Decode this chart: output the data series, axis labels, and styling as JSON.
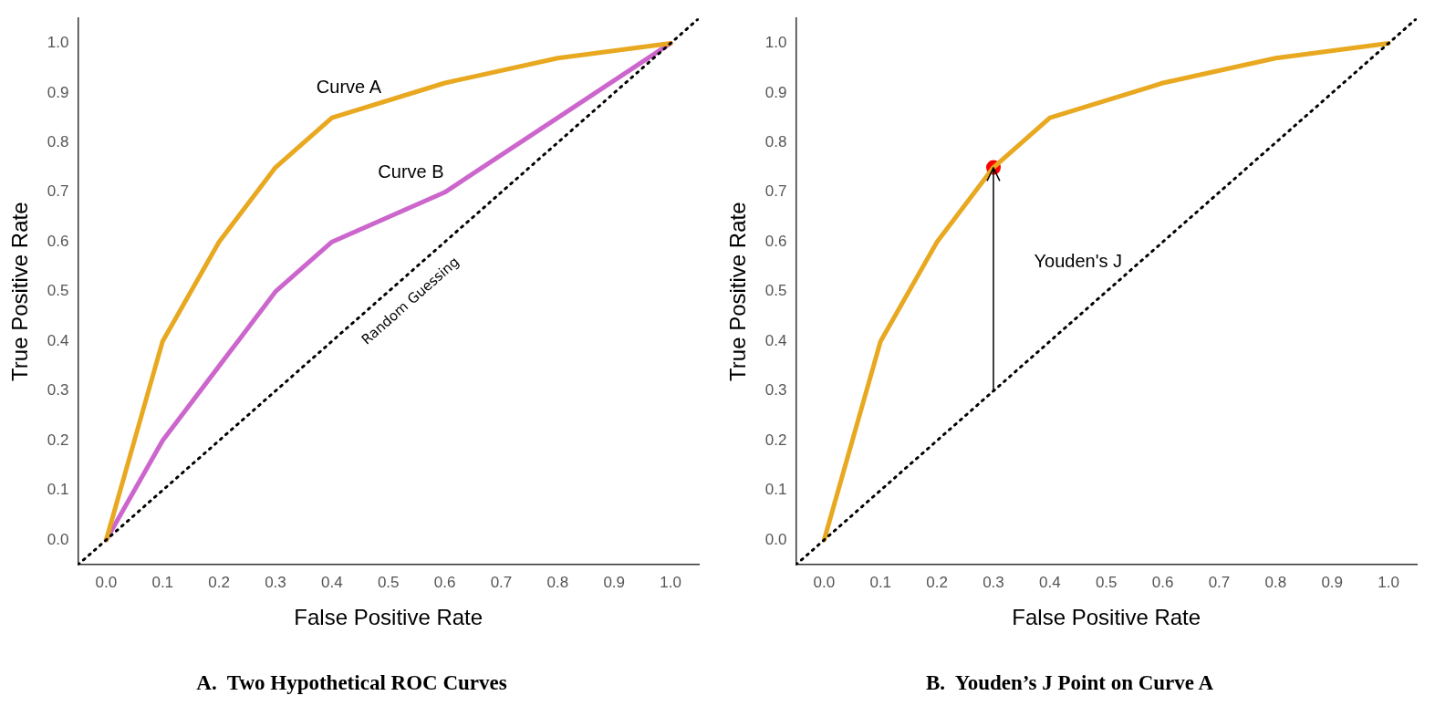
{
  "chart_data": [
    {
      "type": "line",
      "title": "A.  Two Hypothetical ROC Curves",
      "xlabel": "False Positive Rate",
      "ylabel": "True Positive Rate",
      "xlim": [
        -0.05,
        1.05
      ],
      "ylim": [
        -0.05,
        1.05
      ],
      "xticks": [
        {
          "value": 0,
          "label": "0.0"
        },
        {
          "value": 0.1,
          "label": "0.1"
        },
        {
          "value": 0.2,
          "label": "0.2"
        },
        {
          "value": 0.3,
          "label": "0.3"
        },
        {
          "value": 0.4,
          "label": "0.4"
        },
        {
          "value": 0.5,
          "label": "0.5"
        },
        {
          "value": 0.6,
          "label": "0.6"
        },
        {
          "value": 0.7,
          "label": "0.7"
        },
        {
          "value": 0.8,
          "label": "0.8"
        },
        {
          "value": 0.9,
          "label": "0.9"
        },
        {
          "value": 1,
          "label": "1.0"
        }
      ],
      "yticks": [
        {
          "value": 0,
          "label": "0.0"
        },
        {
          "value": 0.1,
          "label": "0.1"
        },
        {
          "value": 0.2,
          "label": "0.2"
        },
        {
          "value": 0.3,
          "label": "0.3"
        },
        {
          "value": 0.4,
          "label": "0.4"
        },
        {
          "value": 0.5,
          "label": "0.5"
        },
        {
          "value": 0.6,
          "label": "0.6"
        },
        {
          "value": 0.7,
          "label": "0.7"
        },
        {
          "value": 0.8,
          "label": "0.8"
        },
        {
          "value": 0.9,
          "label": "0.9"
        },
        {
          "value": 1,
          "label": "1.0"
        }
      ],
      "grid": false,
      "legend": false,
      "marker": "none",
      "series": [
        {
          "color": "#000000",
          "line_style": "dotted",
          "x": [
            -0.05,
            1.05
          ],
          "values": [
            -0.05,
            1.05
          ]
        },
        {
          "color": "#e8a820",
          "x": [
            0,
            0.1,
            0.2,
            0.3,
            0.4,
            0.6,
            0.8,
            1
          ],
          "values": [
            0,
            0.4,
            0.6,
            0.75,
            0.85,
            0.92,
            0.97,
            1
          ]
        },
        {
          "color": "#cc66cc",
          "x": [
            0,
            0.1,
            0.2,
            0.3,
            0.4,
            0.6,
            0.8,
            1
          ],
          "values": [
            0,
            0.2,
            0.35,
            0.5,
            0.6,
            0.7,
            0.85,
            1
          ]
        }
      ],
      "annotations": [
        "Curve A",
        "Curve B",
        "Random Guessing"
      ]
    },
    {
      "type": "line",
      "title": "B.  Youden’s J Point on Curve A",
      "xlabel": "False Positive Rate",
      "ylabel": "True Positive Rate",
      "xlim": [
        -0.05,
        1.05
      ],
      "ylim": [
        -0.05,
        1.05
      ],
      "xticks": [
        {
          "value": 0,
          "label": "0.0"
        },
        {
          "value": 0.1,
          "label": "0.1"
        },
        {
          "value": 0.2,
          "label": "0.2"
        },
        {
          "value": 0.3,
          "label": "0.3"
        },
        {
          "value": 0.4,
          "label": "0.4"
        },
        {
          "value": 0.5,
          "label": "0.5"
        },
        {
          "value": 0.6,
          "label": "0.6"
        },
        {
          "value": 0.7,
          "label": "0.7"
        },
        {
          "value": 0.8,
          "label": "0.8"
        },
        {
          "value": 0.9,
          "label": "0.9"
        },
        {
          "value": 1,
          "label": "1.0"
        }
      ],
      "yticks": [
        {
          "value": 0,
          "label": "0.0"
        },
        {
          "value": 0.1,
          "label": "0.1"
        },
        {
          "value": 0.2,
          "label": "0.2"
        },
        {
          "value": 0.3,
          "label": "0.3"
        },
        {
          "value": 0.4,
          "label": "0.4"
        },
        {
          "value": 0.5,
          "label": "0.5"
        },
        {
          "value": 0.6,
          "label": "0.6"
        },
        {
          "value": 0.7,
          "label": "0.7"
        },
        {
          "value": 0.8,
          "label": "0.8"
        },
        {
          "value": 0.9,
          "label": "0.9"
        },
        {
          "value": 1,
          "label": "1.0"
        }
      ],
      "grid": false,
      "legend": false,
      "marker": "none",
      "series": [
        {
          "color": "#000000",
          "line_style": "dotted",
          "x": [
            -0.05,
            1.05
          ],
          "values": [
            -0.05,
            1.05
          ]
        },
        {
          "color": "#e8a820",
          "x": [
            0,
            0.1,
            0.2,
            0.3,
            0.4,
            0.6,
            0.8,
            1
          ],
          "values": [
            0,
            0.4,
            0.6,
            0.75,
            0.85,
            0.92,
            0.97,
            1
          ]
        },
        {
          "type": "scatter",
          "color": "#ff0000",
          "marker": "circle",
          "x": [
            0.3
          ],
          "values": [
            0.75
          ]
        }
      ],
      "annotations": [
        "Youden's J"
      ]
    }
  ]
}
